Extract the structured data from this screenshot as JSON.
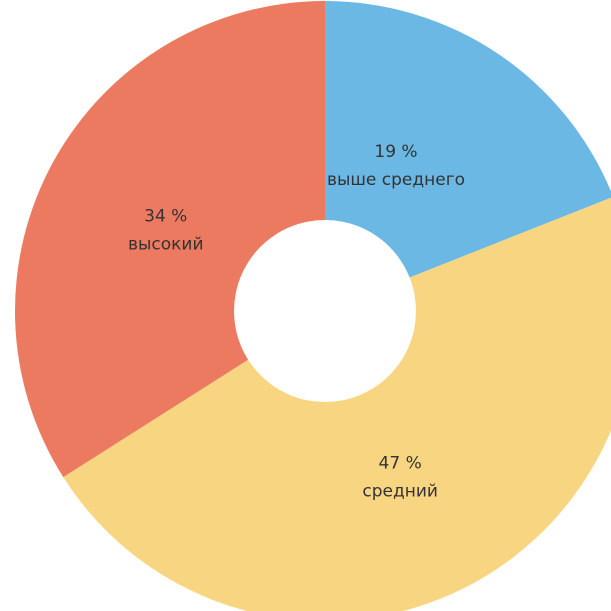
{
  "chart_data": {
    "type": "pie",
    "title": "",
    "donut": true,
    "slices": [
      {
        "label": "выше среднего",
        "value": 19,
        "value_text": "19 %",
        "color": "#6bb8e5"
      },
      {
        "label": "средний",
        "value": 47,
        "value_text": "47 %",
        "color": "#f8d580"
      },
      {
        "label": "высокий",
        "value": 34,
        "value_text": "34 %",
        "color": "#ec7a60"
      }
    ]
  }
}
